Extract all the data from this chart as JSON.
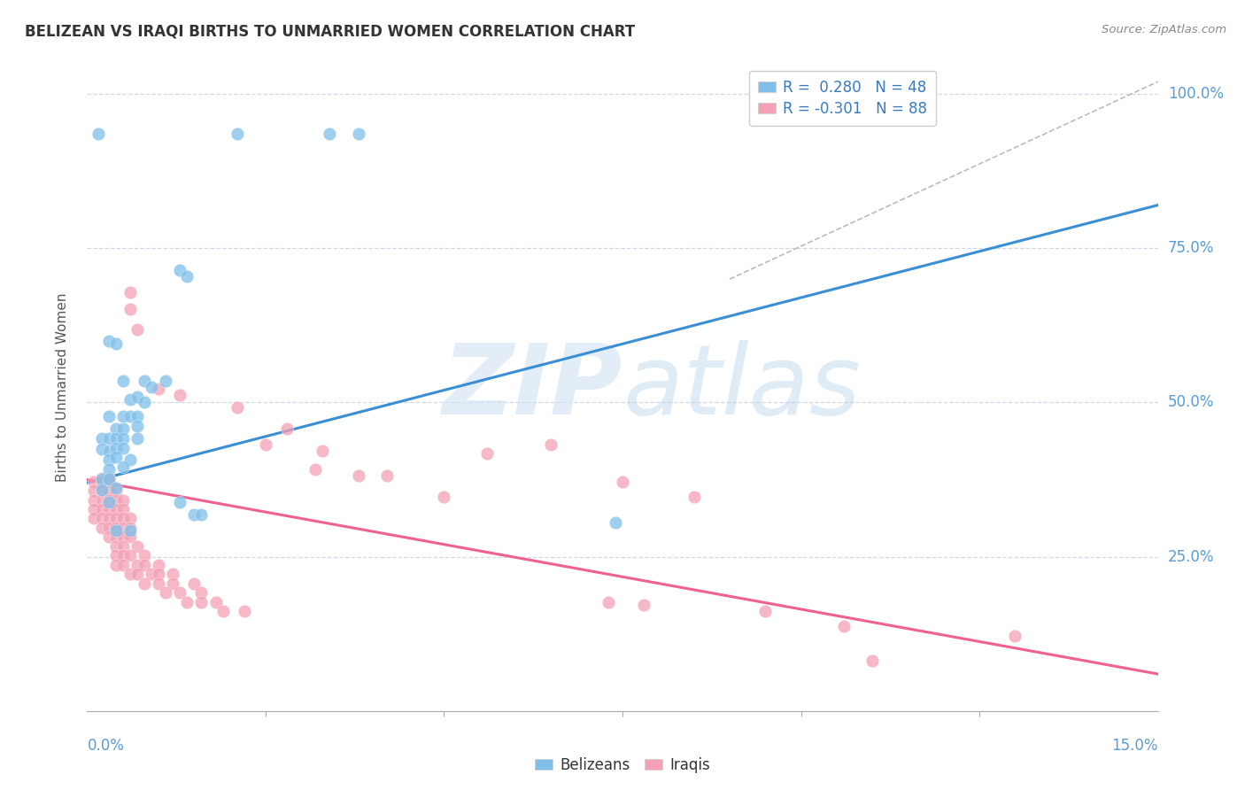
{
  "title": "BELIZEAN VS IRAQI BIRTHS TO UNMARRIED WOMEN CORRELATION CHART",
  "source": "Source: ZipAtlas.com",
  "ylabel": "Births to Unmarried Women",
  "ytick_labels": [
    "100.0%",
    "75.0%",
    "50.0%",
    "25.0%"
  ],
  "ytick_values": [
    1.0,
    0.75,
    0.5,
    0.25
  ],
  "xmin": 0.0,
  "xmax": 0.15,
  "ymin": 0.0,
  "ymax": 1.05,
  "background_color": "#ffffff",
  "grid_color": "#d0d8e8",
  "blue_color": "#7fbfea",
  "pink_color": "#f4a0b5",
  "trend_blue": "#3a8fd4",
  "trend_pink": "#f06090",
  "trend_dashed_color": "#bbbbbb",
  "belizean_points": [
    [
      0.0015,
      0.935
    ],
    [
      0.021,
      0.935
    ],
    [
      0.034,
      0.935
    ],
    [
      0.038,
      0.935
    ],
    [
      0.013,
      0.715
    ],
    [
      0.014,
      0.705
    ],
    [
      0.003,
      0.6
    ],
    [
      0.004,
      0.595
    ],
    [
      0.005,
      0.535
    ],
    [
      0.008,
      0.535
    ],
    [
      0.009,
      0.525
    ],
    [
      0.011,
      0.535
    ],
    [
      0.006,
      0.505
    ],
    [
      0.007,
      0.51
    ],
    [
      0.008,
      0.5
    ],
    [
      0.003,
      0.478
    ],
    [
      0.005,
      0.478
    ],
    [
      0.006,
      0.478
    ],
    [
      0.007,
      0.478
    ],
    [
      0.004,
      0.458
    ],
    [
      0.005,
      0.458
    ],
    [
      0.007,
      0.462
    ],
    [
      0.002,
      0.442
    ],
    [
      0.003,
      0.442
    ],
    [
      0.004,
      0.442
    ],
    [
      0.005,
      0.442
    ],
    [
      0.007,
      0.442
    ],
    [
      0.002,
      0.425
    ],
    [
      0.003,
      0.422
    ],
    [
      0.004,
      0.426
    ],
    [
      0.005,
      0.426
    ],
    [
      0.003,
      0.408
    ],
    [
      0.004,
      0.412
    ],
    [
      0.006,
      0.408
    ],
    [
      0.003,
      0.392
    ],
    [
      0.005,
      0.396
    ],
    [
      0.002,
      0.376
    ],
    [
      0.003,
      0.376
    ],
    [
      0.002,
      0.358
    ],
    [
      0.004,
      0.362
    ],
    [
      0.003,
      0.338
    ],
    [
      0.013,
      0.338
    ],
    [
      0.015,
      0.318
    ],
    [
      0.016,
      0.318
    ],
    [
      0.004,
      0.292
    ],
    [
      0.006,
      0.292
    ],
    [
      0.074,
      0.305
    ]
  ],
  "iraqi_points": [
    [
      0.001,
      0.372
    ],
    [
      0.002,
      0.372
    ],
    [
      0.002,
      0.377
    ],
    [
      0.003,
      0.372
    ],
    [
      0.003,
      0.377
    ],
    [
      0.001,
      0.357
    ],
    [
      0.002,
      0.357
    ],
    [
      0.003,
      0.357
    ],
    [
      0.004,
      0.357
    ],
    [
      0.001,
      0.342
    ],
    [
      0.002,
      0.342
    ],
    [
      0.003,
      0.342
    ],
    [
      0.004,
      0.342
    ],
    [
      0.005,
      0.342
    ],
    [
      0.001,
      0.327
    ],
    [
      0.002,
      0.327
    ],
    [
      0.003,
      0.327
    ],
    [
      0.004,
      0.327
    ],
    [
      0.005,
      0.327
    ],
    [
      0.001,
      0.312
    ],
    [
      0.002,
      0.312
    ],
    [
      0.003,
      0.312
    ],
    [
      0.004,
      0.312
    ],
    [
      0.005,
      0.312
    ],
    [
      0.006,
      0.312
    ],
    [
      0.002,
      0.297
    ],
    [
      0.003,
      0.297
    ],
    [
      0.004,
      0.297
    ],
    [
      0.005,
      0.297
    ],
    [
      0.006,
      0.297
    ],
    [
      0.003,
      0.282
    ],
    [
      0.004,
      0.282
    ],
    [
      0.005,
      0.282
    ],
    [
      0.006,
      0.282
    ],
    [
      0.004,
      0.267
    ],
    [
      0.005,
      0.267
    ],
    [
      0.007,
      0.267
    ],
    [
      0.004,
      0.252
    ],
    [
      0.005,
      0.252
    ],
    [
      0.006,
      0.252
    ],
    [
      0.008,
      0.252
    ],
    [
      0.004,
      0.237
    ],
    [
      0.005,
      0.237
    ],
    [
      0.007,
      0.237
    ],
    [
      0.008,
      0.237
    ],
    [
      0.01,
      0.237
    ],
    [
      0.006,
      0.222
    ],
    [
      0.007,
      0.222
    ],
    [
      0.009,
      0.222
    ],
    [
      0.01,
      0.222
    ],
    [
      0.012,
      0.222
    ],
    [
      0.008,
      0.207
    ],
    [
      0.01,
      0.207
    ],
    [
      0.012,
      0.207
    ],
    [
      0.015,
      0.207
    ],
    [
      0.011,
      0.192
    ],
    [
      0.013,
      0.192
    ],
    [
      0.016,
      0.192
    ],
    [
      0.014,
      0.177
    ],
    [
      0.016,
      0.177
    ],
    [
      0.018,
      0.177
    ],
    [
      0.019,
      0.162
    ],
    [
      0.022,
      0.162
    ],
    [
      0.006,
      0.652
    ],
    [
      0.006,
      0.678
    ],
    [
      0.007,
      0.618
    ],
    [
      0.01,
      0.522
    ],
    [
      0.013,
      0.512
    ],
    [
      0.021,
      0.492
    ],
    [
      0.025,
      0.432
    ],
    [
      0.028,
      0.457
    ],
    [
      0.033,
      0.422
    ],
    [
      0.032,
      0.392
    ],
    [
      0.038,
      0.382
    ],
    [
      0.042,
      0.382
    ],
    [
      0.05,
      0.347
    ],
    [
      0.056,
      0.417
    ],
    [
      0.065,
      0.432
    ],
    [
      0.075,
      0.372
    ],
    [
      0.085,
      0.347
    ],
    [
      0.073,
      0.177
    ],
    [
      0.078,
      0.172
    ],
    [
      0.095,
      0.162
    ],
    [
      0.106,
      0.137
    ],
    [
      0.11,
      0.082
    ],
    [
      0.13,
      0.122
    ]
  ],
  "blue_trend_x": [
    0.0,
    0.15
  ],
  "blue_trend_y": [
    0.37,
    0.82
  ],
  "pink_trend_x": [
    0.0,
    0.15
  ],
  "pink_trend_y": [
    0.375,
    0.06
  ],
  "dashed_trend_x": [
    0.09,
    0.15
  ],
  "dashed_trend_y": [
    0.7,
    1.02
  ]
}
